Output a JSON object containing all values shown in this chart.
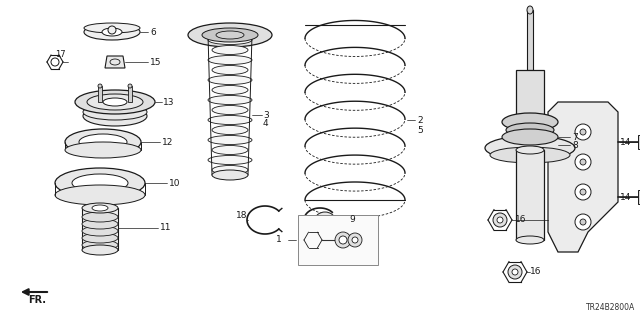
{
  "bg_color": "#ffffff",
  "line_color": "#1a1a1a",
  "diagram_code": "TR24B2800A",
  "figsize": [
    6.4,
    3.2
  ],
  "dpi": 100
}
